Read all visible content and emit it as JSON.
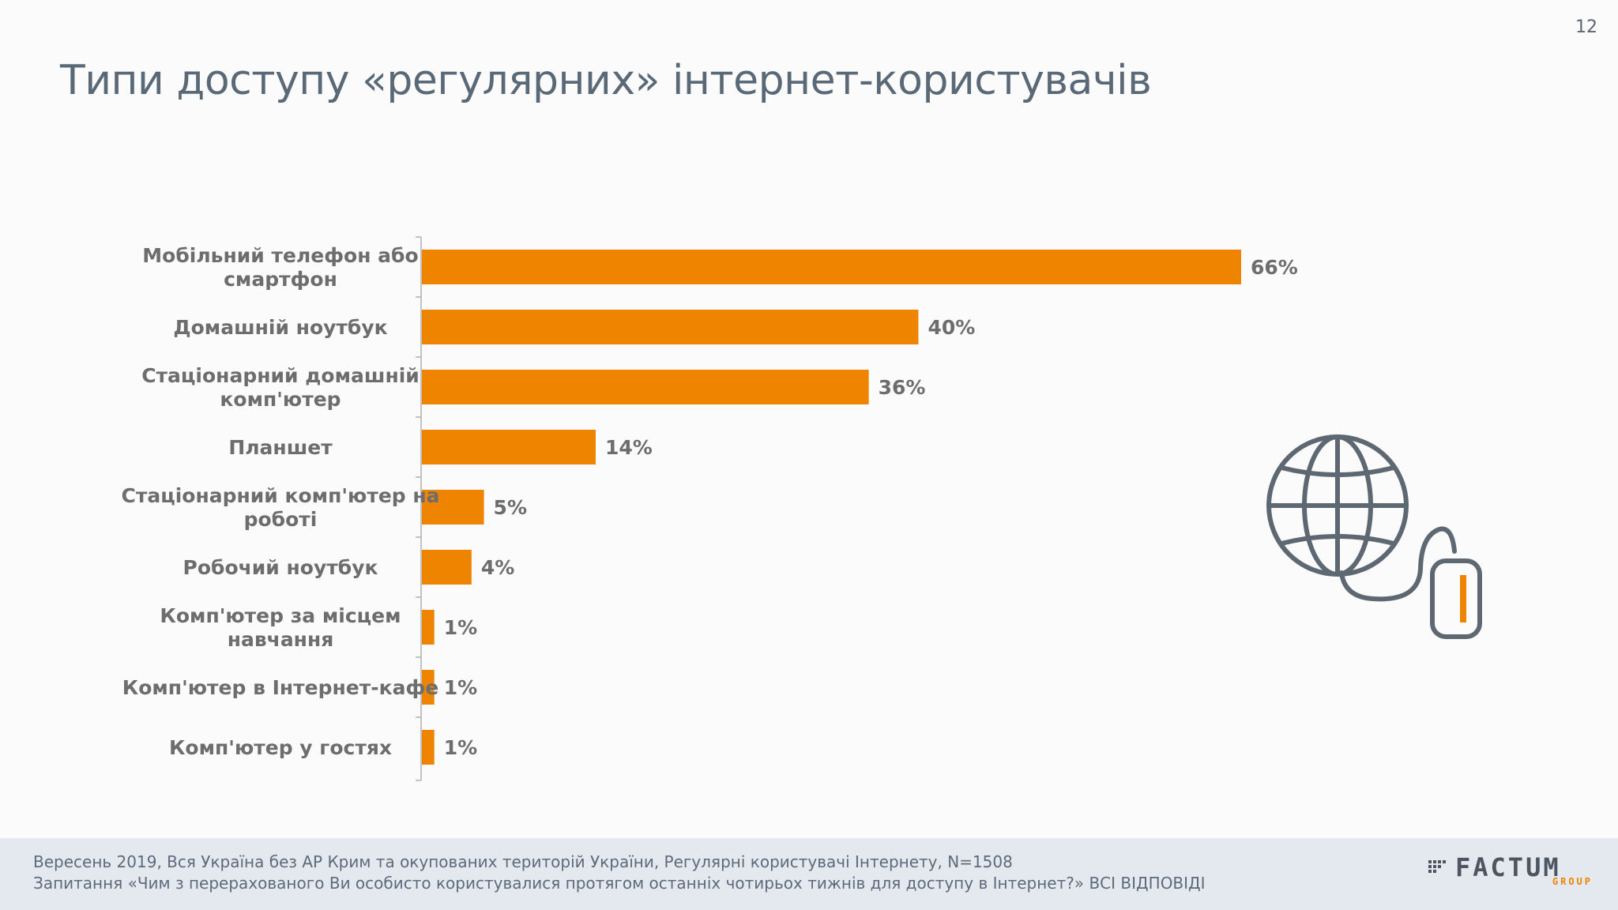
{
  "page_number": "12",
  "title": "Типи доступу «регулярних» інтернет-користувачів",
  "colors": {
    "bar": "#ee8400",
    "label": "#6d6d6d",
    "title": "#5a6977",
    "icon": "#5d6873",
    "icon_accent": "#ee8400",
    "footer_bg": "#e4e8ef"
  },
  "chart_data": {
    "type": "bar",
    "orientation": "horizontal",
    "categories": [
      [
        "Мобільний телефон або",
        "смартфон"
      ],
      [
        "Домашній ноутбук"
      ],
      [
        "Стаціонарний домашній",
        "комп'ютер"
      ],
      [
        "Планшет"
      ],
      [
        "Стаціонарний комп'ютер на",
        "роботі"
      ],
      [
        "Робочий ноутбук"
      ],
      [
        "Комп'ютер за місцем",
        "навчання"
      ],
      [
        "Комп'ютер в Інтернет-кафе"
      ],
      [
        "Комп'ютер у гостях"
      ]
    ],
    "values": [
      66,
      40,
      36,
      14,
      5,
      4,
      1,
      1,
      1
    ],
    "value_labels": [
      "66%",
      "40%",
      "36%",
      "14%",
      "5%",
      "4%",
      "1%",
      "1%",
      "1%"
    ],
    "unit": "%",
    "xlim": [
      0,
      66
    ],
    "grid": false,
    "legend": "none"
  },
  "illustration": {
    "icon": "globe-mouse-icon"
  },
  "footer": {
    "line1": "Вересень 2019, Вся Україна без АР Крим та окупованих територій України, Регулярні користувачі Інтернету, N=1508",
    "line2": "Запитання «Чим з перерахованого Ви особисто користувалися протягом останніх чотирьох тижнів для доступу в Інтернет?» ВСІ ВІДПОВІДІ"
  },
  "logo": {
    "main": "FACTUM",
    "sub": "GROUP"
  }
}
